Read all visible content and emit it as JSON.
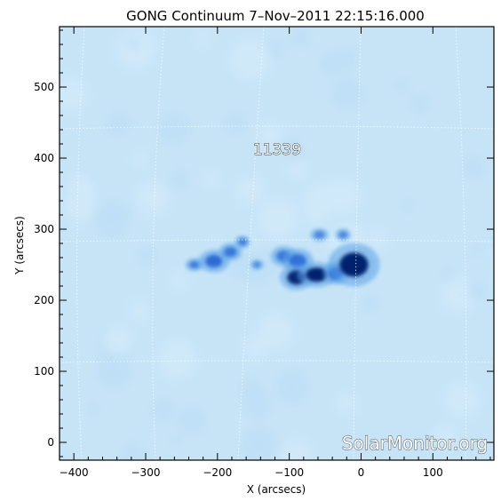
{
  "title": "GONG Continuum   7–Nov–2011  22:15:16.000",
  "region_label": "11339",
  "watermark": "SolarMonitor.org",
  "chart_data": {
    "type": "heatmap",
    "title": "GONG Continuum   7–Nov–2011  22:15:16.000",
    "xlabel": "X (arcsecs)",
    "ylabel": "Y (arcsecs)",
    "xlim": [
      -420,
      185
    ],
    "ylim": [
      -25,
      585
    ],
    "x_ticks": [
      -400,
      -300,
      -200,
      -100,
      0,
      100
    ],
    "y_ticks": [
      0,
      100,
      200,
      300,
      400,
      500
    ],
    "grid": "dotted heliographic grid",
    "colormap": {
      "background": "#c7e4f7",
      "light": "#b8dcf4",
      "mid": "#5aa2e6",
      "dark": "#1b5fd1",
      "core": "#06236e"
    },
    "annotations": [
      {
        "text": "11339",
        "x": -143,
        "y": 403
      }
    ],
    "umbrae": [
      {
        "x": -232,
        "y": 250,
        "rx": 7,
        "ry": 5,
        "level": 0.7
      },
      {
        "x": -205,
        "y": 255,
        "rx": 12,
        "ry": 9,
        "level": 0.85
      },
      {
        "x": -182,
        "y": 268,
        "rx": 9,
        "ry": 7,
        "level": 0.75
      },
      {
        "x": -165,
        "y": 282,
        "rx": 6,
        "ry": 5,
        "level": 0.7
      },
      {
        "x": -145,
        "y": 250,
        "rx": 5,
        "ry": 4,
        "level": 0.55
      },
      {
        "x": -108,
        "y": 262,
        "rx": 10,
        "ry": 8,
        "level": 0.7
      },
      {
        "x": -88,
        "y": 255,
        "rx": 12,
        "ry": 10,
        "level": 0.8
      },
      {
        "x": -90,
        "y": 232,
        "rx": 13,
        "ry": 10,
        "level": 0.95
      },
      {
        "x": -62,
        "y": 236,
        "rx": 15,
        "ry": 10,
        "level": 1.0
      },
      {
        "x": -35,
        "y": 238,
        "rx": 10,
        "ry": 9,
        "level": 0.9
      },
      {
        "x": -58,
        "y": 292,
        "rx": 7,
        "ry": 5,
        "level": 0.6
      },
      {
        "x": -25,
        "y": 292,
        "rx": 6,
        "ry": 5,
        "level": 0.6
      },
      {
        "x": -10,
        "y": 250,
        "rx": 20,
        "ry": 17,
        "level": 1.0
      }
    ]
  }
}
